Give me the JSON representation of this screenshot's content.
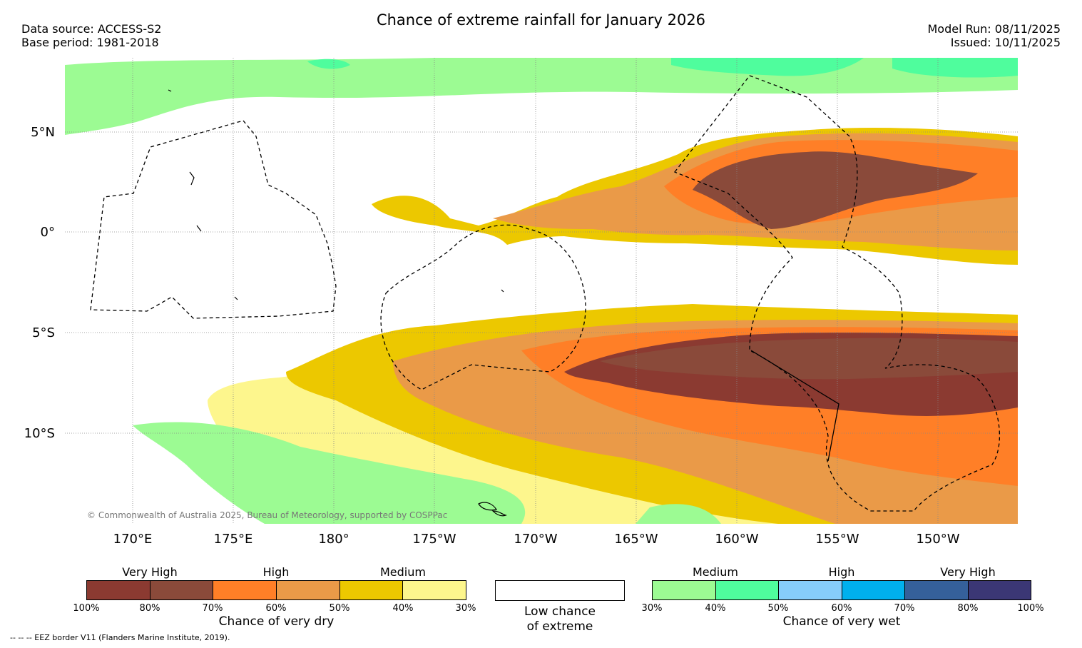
{
  "title": "Chance of extreme rainfall for January 2026",
  "meta": {
    "data_source": "Data source: ACCESS-S2",
    "base_period": "Base period: 1981-2018",
    "model_run": "Model Run: 08/11/2025",
    "issued": "Issued: 10/11/2025"
  },
  "map": {
    "lat_labels": [
      "5°N",
      "0°",
      "5°S",
      "10°S"
    ],
    "lon_labels": [
      "170°E",
      "175°E",
      "180°",
      "175°W",
      "170°W",
      "165°W",
      "160°W",
      "155°W",
      "150°W"
    ],
    "credit": "© Commonwealth of Australia 2025, Bureau of Meteorology, supported by COSPPac"
  },
  "legend": {
    "dry": {
      "levels": [
        "Very High",
        "High",
        "Medium"
      ],
      "ticks": [
        "100%",
        "80%",
        "70%",
        "60%",
        "50%",
        "40%",
        "30%"
      ],
      "colors": [
        "#8b3a31",
        "#8a4a3a",
        "#ff7f27",
        "#ea9a48",
        "#ecc800",
        "#fdf68d"
      ],
      "caption": "Chance of very dry"
    },
    "low": {
      "caption_line1": "Low chance",
      "caption_line2": "of extreme"
    },
    "wet": {
      "levels": [
        "Medium",
        "High",
        "Very High"
      ],
      "ticks": [
        "30%",
        "40%",
        "50%",
        "60%",
        "70%",
        "80%",
        "100%"
      ],
      "colors": [
        "#9cfb93",
        "#4ffd9d",
        "#86cdfb",
        "#00b0ed",
        "#35609a",
        "#3b3775"
      ],
      "caption": "Chance of very wet"
    }
  },
  "footnote": "--  --  -- EEZ border V11 (Flanders Marine Institute, 2019)."
}
